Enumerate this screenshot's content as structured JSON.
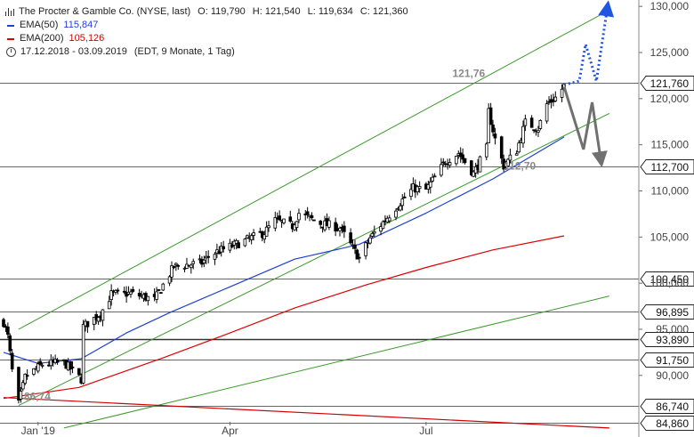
{
  "legend": {
    "title": "The Procter & Gamble Co. (NYSE, last)",
    "open": "O: 119,790",
    "high": "H: 121,540",
    "low": "L: 119,634",
    "close": "C: 121,360",
    "ema50_label": "EMA(50)",
    "ema50_value": "115,847",
    "ema200_label": "EMA(200)",
    "ema200_value": "105,126",
    "range": "17.12.2018 - 03.09.2019",
    "range_detail": "(EDT, 9 Monate, 1 Tag)"
  },
  "colors": {
    "candle": "#000000",
    "ema50": "#1f3fd6",
    "ema200": "#e00000",
    "channel": "#3a9a2a",
    "level": "#333333",
    "arrow_down": "#707070",
    "arrow_up": "#1f55e0"
  },
  "chart_data": {
    "type": "candlestick",
    "title": "The Procter & Gamble Co. (NYSE, last)",
    "ylim": [
      84.0,
      130.5
    ],
    "y_ticks": [
      "130,000",
      "125,000",
      "120,000",
      "115,000",
      "110,000",
      "105,000",
      "100,000",
      "95,000",
      "90,000"
    ],
    "y_tick_values": [
      130,
      125,
      120,
      115,
      110,
      105,
      100,
      95,
      90
    ],
    "x_ticks": [
      "Jan '19",
      "Apr",
      "Jul"
    ],
    "x_tick_dates": [
      "2019-01-02",
      "2019-04-01",
      "2019-07-01"
    ],
    "date_range": [
      "2018-12-17",
      "2019-09-03"
    ],
    "price_anchors": [
      {
        "date": "2018-12-17",
        "close": 95.8
      },
      {
        "date": "2018-12-19",
        "close": 94.2
      },
      {
        "date": "2018-12-21",
        "close": 90.5
      },
      {
        "date": "2018-12-24",
        "close": 86.9
      },
      {
        "date": "2018-12-27",
        "close": 89.8
      },
      {
        "date": "2019-01-04",
        "close": 91.2
      },
      {
        "date": "2019-01-14",
        "close": 91.4
      },
      {
        "date": "2019-01-22",
        "close": 89.6
      },
      {
        "date": "2019-01-23",
        "close": 95.3
      },
      {
        "date": "2019-01-31",
        "close": 96.7
      },
      {
        "date": "2019-02-05",
        "close": 98.8
      },
      {
        "date": "2019-02-14",
        "close": 98.9
      },
      {
        "date": "2019-02-25",
        "close": 98.2
      },
      {
        "date": "2019-03-06",
        "close": 101.8
      },
      {
        "date": "2019-03-19",
        "close": 102.2
      },
      {
        "date": "2019-03-22",
        "close": 102.9
      },
      {
        "date": "2019-03-26",
        "close": 103.4
      },
      {
        "date": "2019-04-08",
        "close": 104.6
      },
      {
        "date": "2019-04-17",
        "close": 105.5
      },
      {
        "date": "2019-04-22",
        "close": 106.8
      },
      {
        "date": "2019-04-30",
        "close": 106.2
      },
      {
        "date": "2019-05-03",
        "close": 107.6
      },
      {
        "date": "2019-05-13",
        "close": 106.5
      },
      {
        "date": "2019-05-22",
        "close": 106.0
      },
      {
        "date": "2019-05-31",
        "close": 102.7
      },
      {
        "date": "2019-06-05",
        "close": 104.9
      },
      {
        "date": "2019-06-11",
        "close": 106.6
      },
      {
        "date": "2019-06-18",
        "close": 108.5
      },
      {
        "date": "2019-06-25",
        "close": 110.3
      },
      {
        "date": "2019-07-01",
        "close": 110.1
      },
      {
        "date": "2019-07-10",
        "close": 113.2
      },
      {
        "date": "2019-07-16",
        "close": 114.1
      },
      {
        "date": "2019-07-23",
        "close": 111.9
      },
      {
        "date": "2019-07-29",
        "close": 114.6
      },
      {
        "date": "2019-07-30",
        "close": 118.6
      },
      {
        "date": "2019-08-02",
        "close": 115.6
      },
      {
        "date": "2019-08-06",
        "close": 112.7
      },
      {
        "date": "2019-08-12",
        "close": 114.4
      },
      {
        "date": "2019-08-16",
        "close": 117.4
      },
      {
        "date": "2019-08-22",
        "close": 116.8
      },
      {
        "date": "2019-08-26",
        "close": 119.4
      },
      {
        "date": "2019-08-30",
        "close": 120.1
      },
      {
        "date": "2019-09-03",
        "close": 121.36
      }
    ],
    "ema50": [
      {
        "date": "2018-12-17",
        "value": 92.5
      },
      {
        "date": "2019-01-02",
        "value": 91.3
      },
      {
        "date": "2019-01-22",
        "value": 91.8
      },
      {
        "date": "2019-02-12",
        "value": 94.6
      },
      {
        "date": "2019-03-04",
        "value": 96.8
      },
      {
        "date": "2019-04-01",
        "value": 99.6
      },
      {
        "date": "2019-05-01",
        "value": 102.6
      },
      {
        "date": "2019-05-31",
        "value": 104.2
      },
      {
        "date": "2019-07-01",
        "value": 107.6
      },
      {
        "date": "2019-08-01",
        "value": 111.3
      },
      {
        "date": "2019-09-03",
        "value": 115.847
      }
    ],
    "ema200": [
      {
        "date": "2018-12-17",
        "value": 87.5
      },
      {
        "date": "2019-01-21",
        "value": 88.7
      },
      {
        "date": "2019-03-01",
        "value": 91.9
      },
      {
        "date": "2019-04-01",
        "value": 94.6
      },
      {
        "date": "2019-05-01",
        "value": 97.3
      },
      {
        "date": "2019-06-03",
        "value": 99.8
      },
      {
        "date": "2019-07-01",
        "value": 101.7
      },
      {
        "date": "2019-08-01",
        "value": 103.6
      },
      {
        "date": "2019-09-03",
        "value": 105.126
      }
    ],
    "channel_upper": [
      {
        "date": "2018-12-24",
        "value": 95.0
      },
      {
        "date": "2019-09-24",
        "value": 129.6
      }
    ],
    "channel_lower": [
      {
        "date": "2018-12-24",
        "value": 86.74
      },
      {
        "date": "2019-09-24",
        "value": 118.4
      }
    ],
    "long_trendline": [
      {
        "date": "2019-01-14",
        "value": 84.3
      },
      {
        "date": "2019-09-24",
        "value": 98.6
      }
    ],
    "old_downtrend": [
      {
        "date": "2018-12-17",
        "value": 87.6
      },
      {
        "date": "2019-09-24",
        "value": 84.3
      }
    ],
    "horizontal_levels": [
      "121,760",
      "112,700",
      "100,450",
      "96,895",
      "93,890",
      "91,750",
      "86,740",
      "84,860"
    ],
    "horizontal_level_values": [
      121.76,
      112.7,
      100.45,
      96.895,
      93.89,
      91.75,
      86.74,
      84.86
    ],
    "annotations": [
      {
        "text": "121,76",
        "date": "2019-07-30",
        "value": 121.76
      },
      {
        "text": "112,70",
        "date": "2019-08-06",
        "value": 112.7
      },
      {
        "text": "86,74",
        "date": "2018-12-24",
        "value": 86.74
      }
    ],
    "scenario_down": [
      {
        "date": "2019-09-03",
        "value": 121.3
      },
      {
        "date": "2019-09-12",
        "value": 114.5
      },
      {
        "date": "2019-09-16",
        "value": 119.6
      },
      {
        "date": "2019-09-20",
        "value": 113.4
      }
    ],
    "scenario_up": [
      {
        "date": "2019-09-03",
        "value": 121.5
      },
      {
        "date": "2019-09-10",
        "value": 121.9
      },
      {
        "date": "2019-09-13",
        "value": 125.9
      },
      {
        "date": "2019-09-18",
        "value": 121.9
      },
      {
        "date": "2019-09-23",
        "value": 129.8
      }
    ]
  }
}
